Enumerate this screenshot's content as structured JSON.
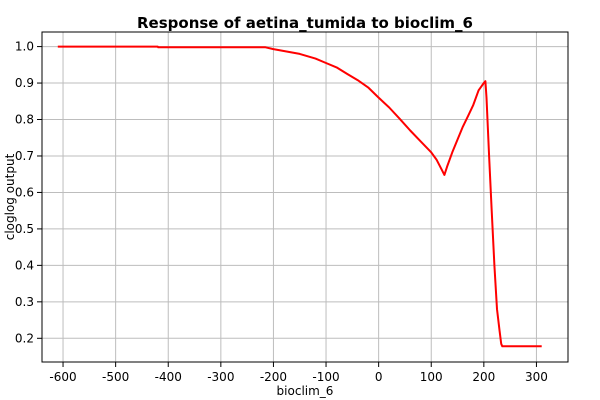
{
  "chart_data": {
    "type": "line",
    "title": "Response of aetina_tumida to bioclim_6",
    "xlabel": "bioclim_6",
    "ylabel": "cloglog output",
    "xlim": [
      -640,
      360
    ],
    "ylim": [
      0.135,
      1.04
    ],
    "xticks": [
      -600,
      -500,
      -400,
      -300,
      -200,
      -100,
      0,
      100,
      200,
      300
    ],
    "yticks": [
      0.2,
      0.3,
      0.4,
      0.5,
      0.6,
      0.7,
      0.8,
      0.9,
      1.0
    ],
    "grid": true,
    "series": [
      {
        "color": "#ff0000",
        "x": [
          -610,
          -420,
          -419,
          -215,
          -200,
          -150,
          -120,
          -100,
          -80,
          -60,
          -40,
          -20,
          0,
          20,
          40,
          60,
          80,
          100,
          110,
          120,
          125,
          130,
          140,
          150,
          160,
          170,
          180,
          190,
          195,
          200,
          203,
          205,
          210,
          215,
          220,
          225,
          230,
          233,
          235,
          240,
          260,
          280,
          310
        ],
        "y": [
          1.0,
          1.0,
          0.998,
          0.998,
          0.993,
          0.98,
          0.967,
          0.955,
          0.943,
          0.925,
          0.908,
          0.888,
          0.86,
          0.833,
          0.802,
          0.77,
          0.74,
          0.71,
          0.69,
          0.662,
          0.648,
          0.67,
          0.71,
          0.745,
          0.78,
          0.81,
          0.84,
          0.88,
          0.89,
          0.9,
          0.905,
          0.86,
          0.7,
          0.55,
          0.4,
          0.28,
          0.22,
          0.185,
          0.178,
          0.178,
          0.178,
          0.178,
          0.178
        ]
      }
    ]
  }
}
